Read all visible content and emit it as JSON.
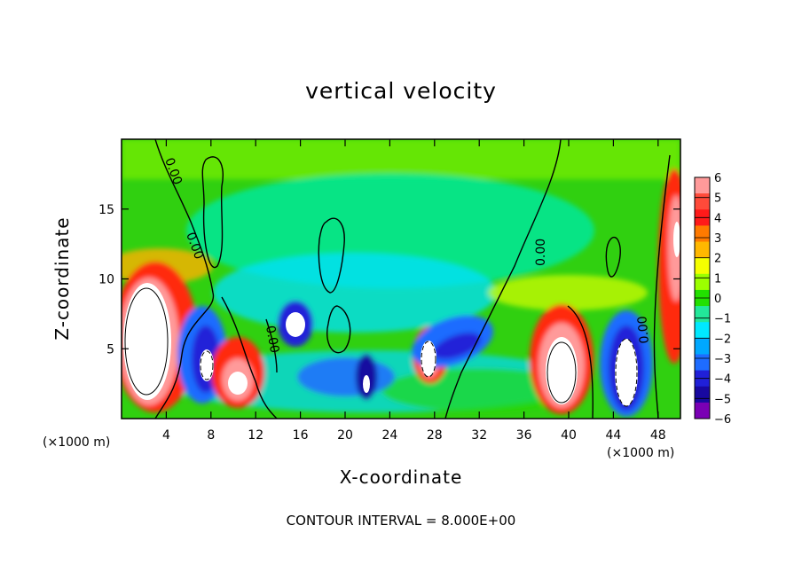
{
  "chart_data": {
    "type": "heatmap",
    "title": "vertical velocity",
    "xlabel": "X-coordinate",
    "ylabel": "Z-coordinate",
    "x_unit_label": "(×1000 m)",
    "xlim": [
      0,
      50
    ],
    "ylim": [
      0,
      20
    ],
    "x_ticks": [
      "4",
      "8",
      "12",
      "16",
      "20",
      "24",
      "28",
      "32",
      "36",
      "40",
      "44",
      "48"
    ],
    "y_ticks": [
      "5",
      "10",
      "15"
    ],
    "colorbar": {
      "ticks": [
        "6",
        "5",
        "4",
        "3",
        "2",
        "1",
        "0",
        "−1",
        "−2",
        "−3",
        "−4",
        "−5",
        "−6"
      ],
      "colors": [
        "#ff9a9a",
        "#ff4a3a",
        "#ff1a1a",
        "#ff7a00",
        "#ffb800",
        "#f5ff00",
        "#9cff00",
        "#22e000",
        "#22e89a",
        "#00e8ff",
        "#00a8ff",
        "#1e6cff",
        "#2020d8",
        "#1808a0",
        "#7a00b4"
      ]
    },
    "contour_label": "0.00",
    "footer": "CONTOUR INTERVAL = 8.000E+00",
    "features": [
      {
        "x": 2.5,
        "z": 5.5,
        "w": 8,
        "kind": "updraft"
      },
      {
        "x": 7.5,
        "z": 3.5,
        "w": -5,
        "kind": "downdraft"
      },
      {
        "x": 10.5,
        "z": 3.2,
        "w": 6,
        "kind": "updraft"
      },
      {
        "x": 15.5,
        "z": 6.3,
        "w": -5,
        "kind": "downdraft"
      },
      {
        "x": 22.0,
        "z": 2.5,
        "w": -6,
        "kind": "downdraft"
      },
      {
        "x": 27.5,
        "z": 4.5,
        "w": 8,
        "kind": "updraft"
      },
      {
        "x": 29.5,
        "z": 4.5,
        "w": -5,
        "kind": "downdraft"
      },
      {
        "x": 39.3,
        "z": 4.2,
        "w": 8,
        "kind": "updraft"
      },
      {
        "x": 44.2,
        "z": 4.0,
        "w": -8,
        "kind": "downdraft"
      },
      {
        "x": 49.0,
        "z": 11.0,
        "w": 6,
        "kind": "updraft"
      }
    ]
  }
}
